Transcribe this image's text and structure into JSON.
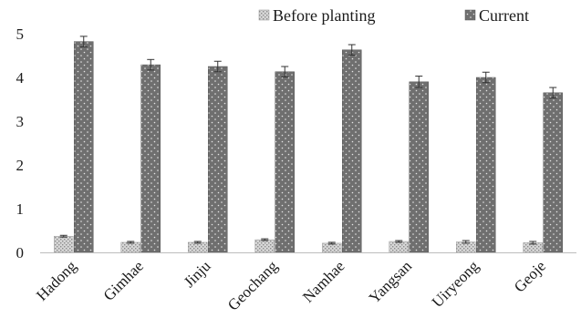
{
  "chart_data": {
    "type": "bar",
    "categories": [
      "Hadong",
      "Gimhae",
      "Jinju",
      "Geochang",
      "Namhae",
      "Yangsan",
      "Uiryeong",
      "Geoje"
    ],
    "series": [
      {
        "name": "Before planting",
        "values": [
          0.37,
          0.23,
          0.23,
          0.29,
          0.21,
          0.25,
          0.24,
          0.22
        ],
        "errors": [
          0.02,
          0.02,
          0.02,
          0.02,
          0.02,
          0.02,
          0.03,
          0.03
        ],
        "color": "#cfcfcf"
      },
      {
        "name": "Current",
        "values": [
          4.82,
          4.29,
          4.25,
          4.13,
          4.63,
          3.9,
          4.0,
          3.65
        ],
        "errors": [
          0.12,
          0.12,
          0.12,
          0.12,
          0.12,
          0.13,
          0.12,
          0.12
        ],
        "color": "#6f6f6f"
      }
    ],
    "yticks": [
      "0",
      "1",
      "2",
      "3",
      "4",
      "5"
    ],
    "ylim": [
      0,
      5
    ],
    "title": "",
    "xlabel": "",
    "ylabel": "",
    "grid": false,
    "legend": "top-center"
  }
}
